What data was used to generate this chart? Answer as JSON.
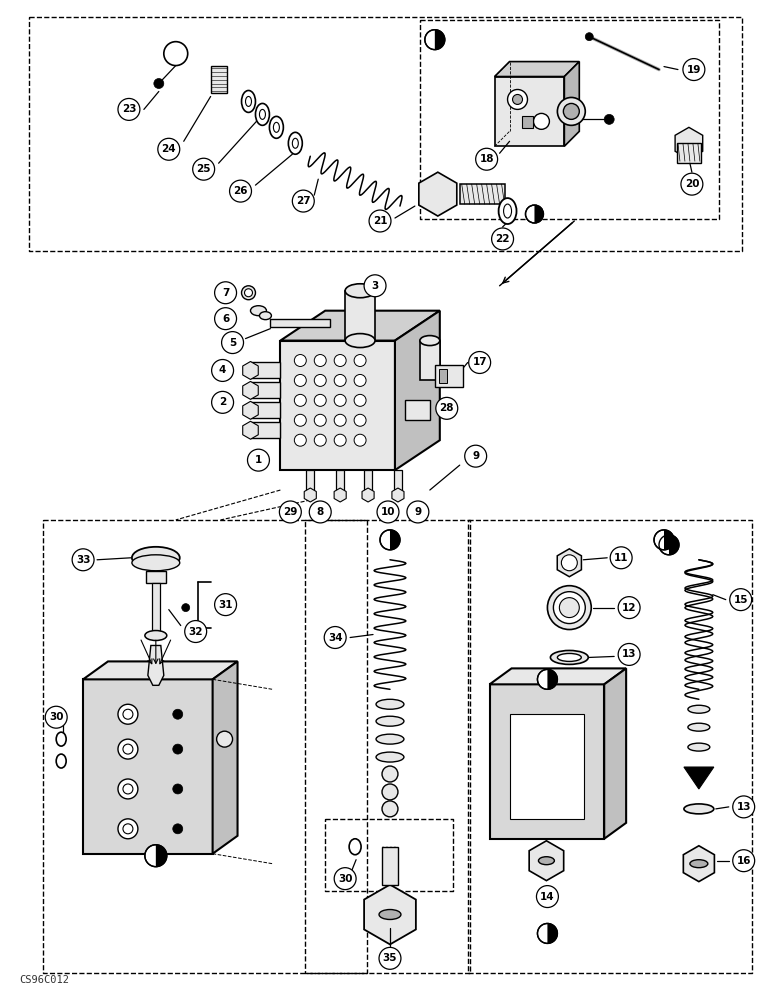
{
  "background_color": "#ffffff",
  "watermark": "CS96C012",
  "fig_width": 7.72,
  "fig_height": 10.0,
  "dpi": 100,
  "line_color": "#000000",
  "part_fill": "#e8e8e8",
  "dark_fill": "#555555",
  "mid_fill": "#b0b0b0"
}
